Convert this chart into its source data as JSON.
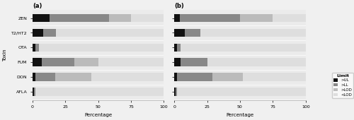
{
  "toxins": [
    "AFLA",
    "DON",
    "FUM",
    "OTA",
    "T2/HT2",
    "ZEN"
  ],
  "categories": [
    ">UL",
    ">LL",
    ">LOD",
    "<LOD"
  ],
  "colors": [
    "#111111",
    "#888888",
    "#bbbbbb",
    "#dedede"
  ],
  "panel_a": {
    "title": "(a)",
    "data": {
      "ZEN": [
        13,
        45,
        17,
        25
      ],
      "T2/HT2": [
        8,
        10,
        0,
        82
      ],
      "OTA": [
        2,
        3,
        0,
        95
      ],
      "FUM": [
        7,
        25,
        18,
        50
      ],
      "DON": [
        2,
        15,
        28,
        55
      ],
      "AFLA": [
        1,
        1,
        0,
        98
      ]
    }
  },
  "panel_b": {
    "title": "(b)",
    "data": {
      "ZEN": [
        4,
        46,
        25,
        25
      ],
      "T2/HT2": [
        8,
        12,
        0,
        80
      ],
      "OTA": [
        2,
        3,
        0,
        95
      ],
      "FUM": [
        5,
        20,
        0,
        75
      ],
      "DON": [
        2,
        27,
        23,
        48
      ],
      "AFLA": [
        1,
        1,
        0,
        98
      ]
    }
  },
  "legend_labels": [
    ">UL",
    ">LL",
    ">LOD",
    "<LOD"
  ],
  "xlabel": "Percentage",
  "ylabel": "Toxin",
  "bg_color": "#f0f0f0",
  "plot_bg_color": "#ebebeb",
  "bar_height": 0.55,
  "xlim": [
    0,
    100
  ],
  "xticks": [
    0,
    25,
    50,
    75,
    100
  ]
}
